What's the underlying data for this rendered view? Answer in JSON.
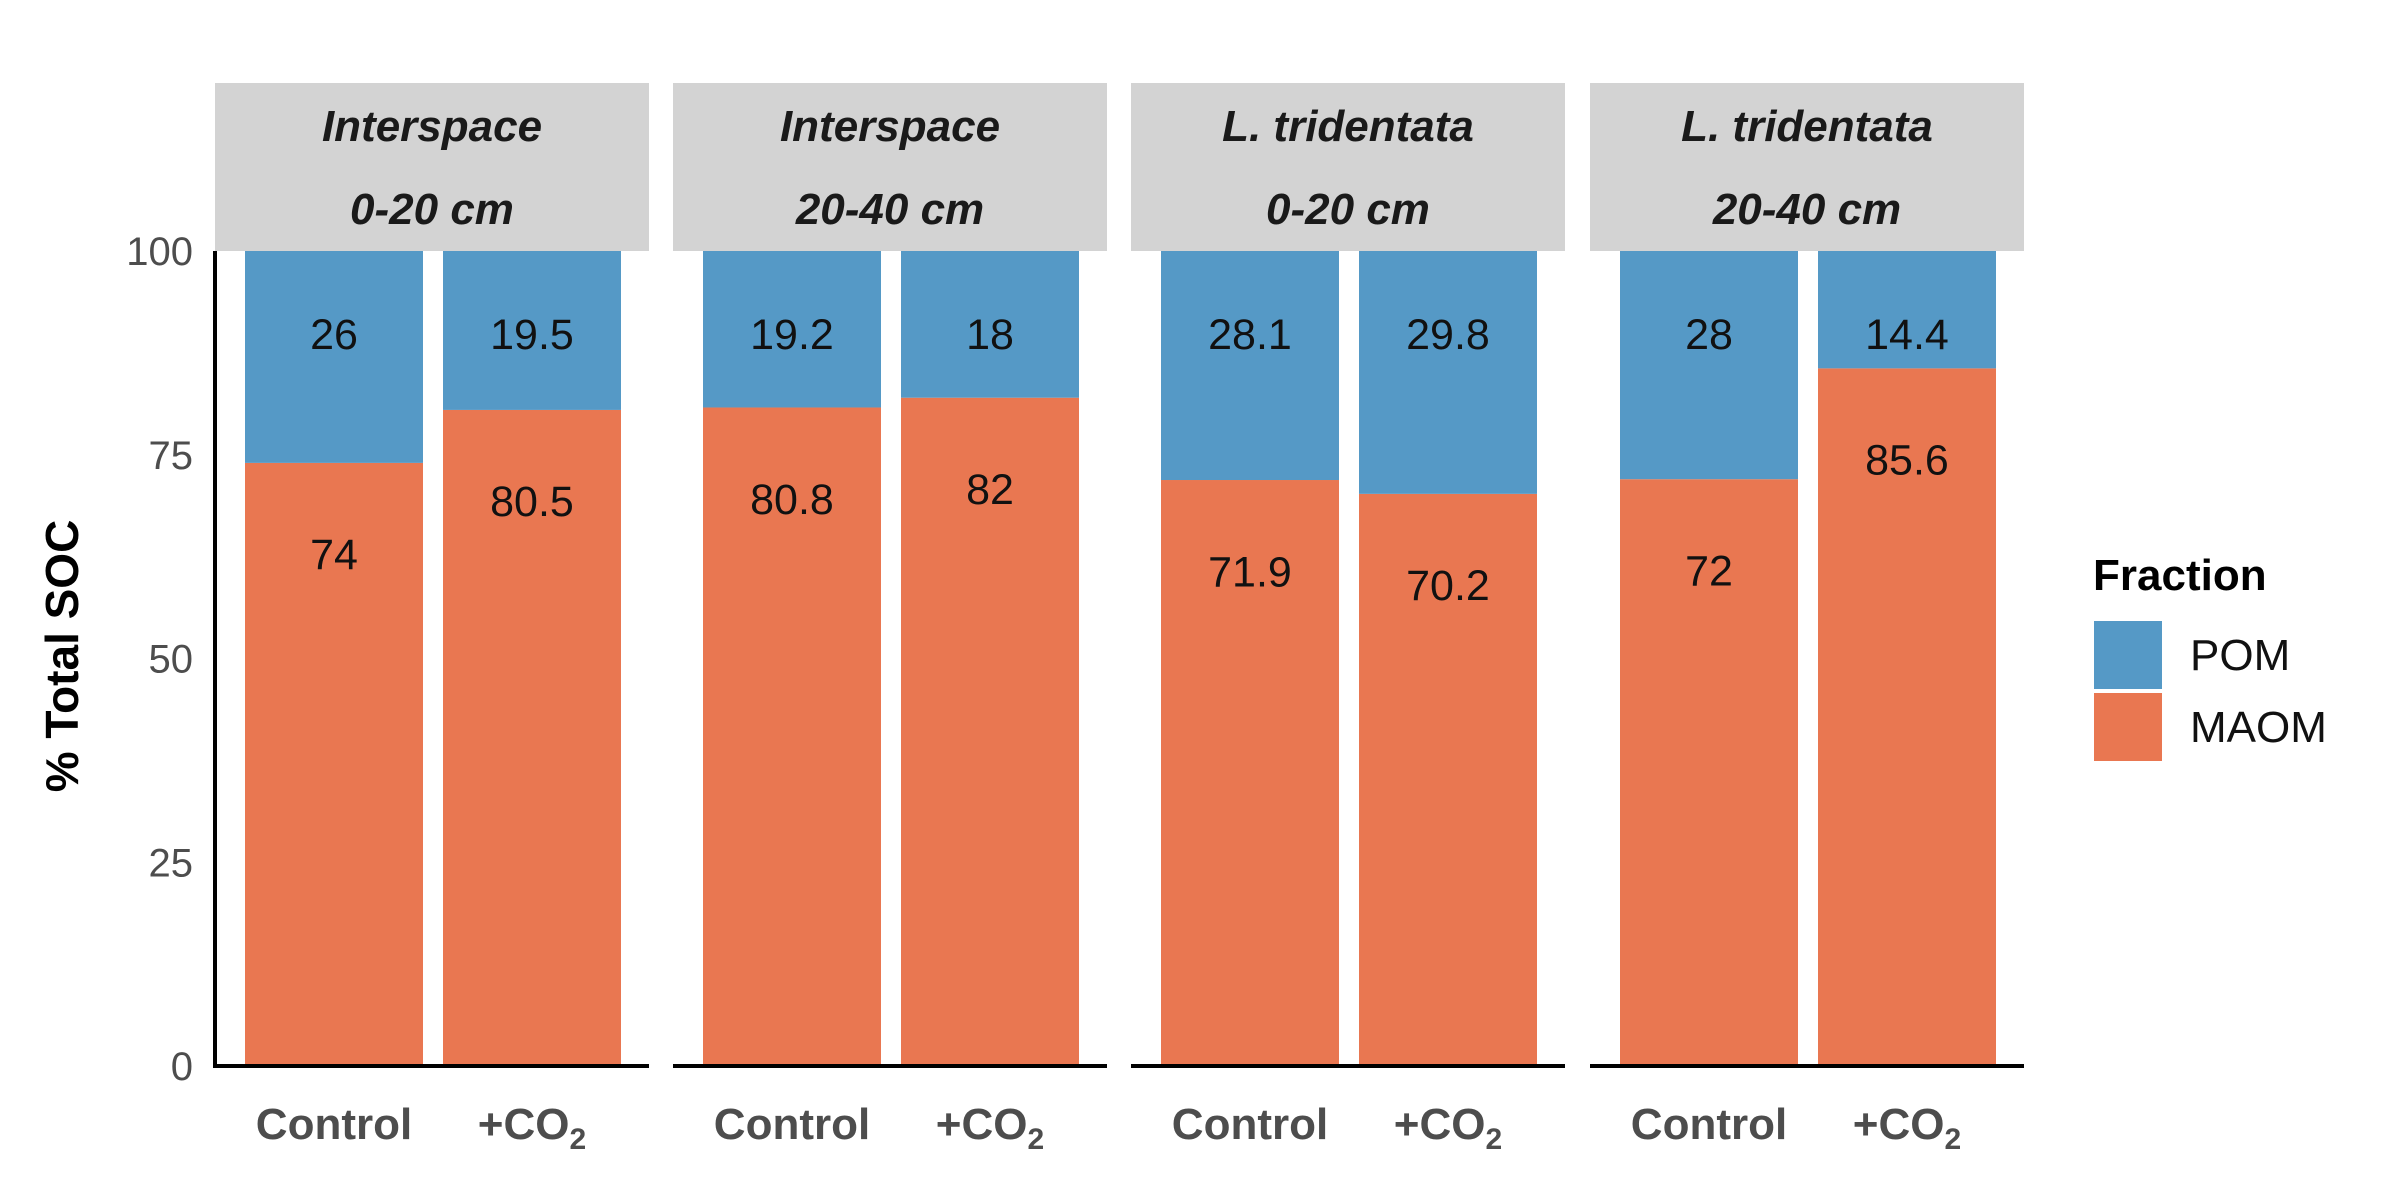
{
  "chart_data": {
    "type": "bar",
    "stacked": true,
    "ylabel": "% Total SOC",
    "ylim": [
      0,
      100
    ],
    "yticks": [
      0,
      25,
      50,
      75,
      100
    ],
    "grid": false,
    "legend": {
      "title": "Fraction",
      "position": "right",
      "items": [
        {
          "name": "POM",
          "color": "#5599c6"
        },
        {
          "name": "MAOM",
          "color": "#e97751"
        }
      ]
    },
    "categories": [
      {
        "base": "Control",
        "sub": ""
      },
      {
        "base": "+CO",
        "sub": "2"
      }
    ],
    "panels": [
      {
        "strip": [
          "Interspace",
          "0-20 cm"
        ],
        "maom": [
          74,
          80.5
        ],
        "pom": [
          26,
          19.5
        ],
        "maom_labels": [
          "74",
          "80.5"
        ],
        "pom_labels": [
          "26",
          "19.5"
        ]
      },
      {
        "strip": [
          "Interspace",
          "20-40 cm"
        ],
        "maom": [
          80.8,
          82
        ],
        "pom": [
          19.2,
          18
        ],
        "maom_labels": [
          "80.8",
          "82"
        ],
        "pom_labels": [
          "19.2",
          "18"
        ]
      },
      {
        "strip": [
          "L. tridentata",
          "0-20 cm"
        ],
        "maom": [
          71.9,
          70.2
        ],
        "pom": [
          28.1,
          29.8
        ],
        "maom_labels": [
          "71.9",
          "70.2"
        ],
        "pom_labels": [
          "28.1",
          "29.8"
        ]
      },
      {
        "strip": [
          "L. tridentata",
          "20-40 cm"
        ],
        "maom": [
          72,
          85.6
        ],
        "pom": [
          28,
          14.4
        ],
        "maom_labels": [
          "72",
          "85.6"
        ],
        "pom_labels": [
          "28",
          "14.4"
        ]
      }
    ]
  }
}
